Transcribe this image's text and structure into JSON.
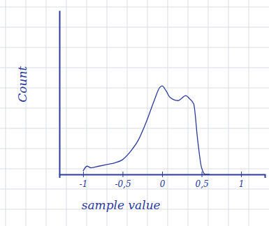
{
  "chart_data": {
    "type": "line",
    "xlabel": "sample value",
    "ylabel": "Count",
    "x": [
      -1.0,
      -0.95,
      -0.9,
      -0.8,
      -0.7,
      -0.6,
      -0.5,
      -0.4,
      -0.3,
      -0.2,
      -0.1,
      -0.03,
      0.0,
      0.05,
      0.1,
      0.2,
      0.3,
      0.35,
      0.4,
      0.45,
      0.5,
      0.55,
      0.6
    ],
    "values": [
      2,
      5,
      4,
      5,
      6,
      7,
      9,
      14,
      21,
      32,
      45,
      53,
      54,
      51,
      47,
      45,
      48,
      46,
      43,
      21,
      4,
      0,
      0
    ],
    "color": "#2b3a9c",
    "xlim": [
      -1.3,
      1.3
    ],
    "ylim": [
      0,
      100
    ],
    "xticks": [
      -1,
      {
        "value": -0.5,
        "label": "-0,5"
      },
      0,
      {
        "value": 0.5,
        "label": "0,5"
      },
      1
    ],
    "tick_labels": "x",
    "grid": false
  }
}
